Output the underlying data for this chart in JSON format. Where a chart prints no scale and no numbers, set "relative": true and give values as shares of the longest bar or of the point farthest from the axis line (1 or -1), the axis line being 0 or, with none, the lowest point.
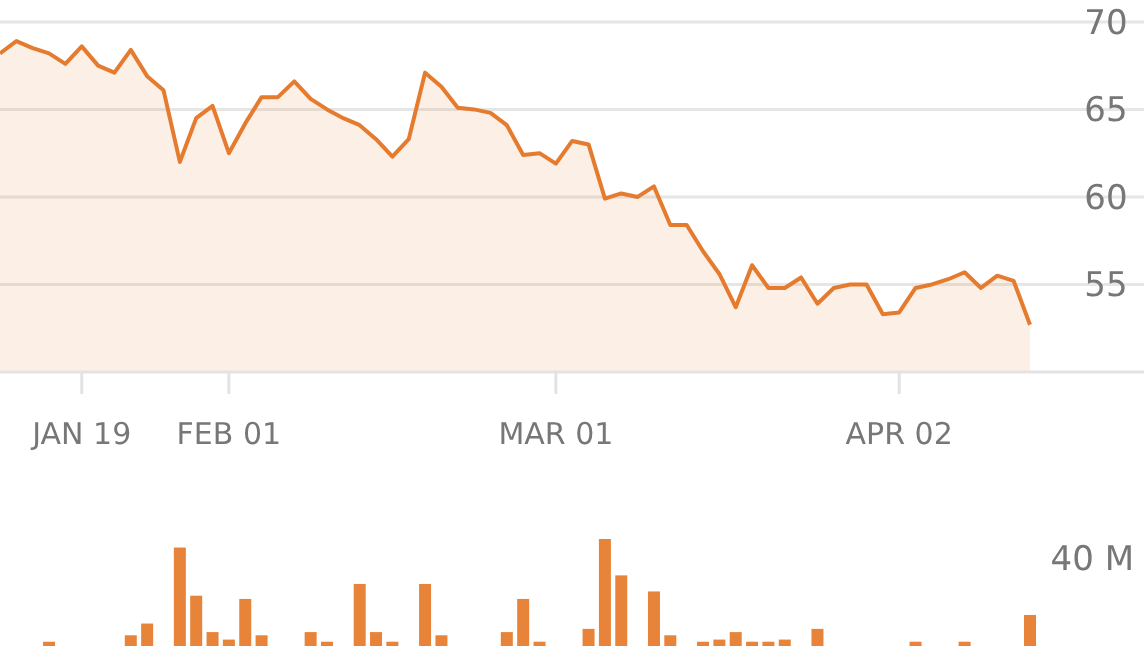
{
  "chart_data": [
    {
      "type": "area",
      "categories": [
        null,
        null,
        null,
        null,
        null,
        "JAN 19",
        null,
        null,
        null,
        null,
        null,
        null,
        null,
        null,
        "FEB 01",
        null,
        null,
        null,
        null,
        null,
        null,
        null,
        null,
        null,
        null,
        null,
        null,
        null,
        null,
        null,
        null,
        null,
        null,
        null,
        "MAR 01",
        null,
        null,
        null,
        null,
        null,
        null,
        null,
        null,
        null,
        null,
        null,
        null,
        null,
        null,
        null,
        null,
        null,
        null,
        null,
        null,
        "APR 02",
        null,
        null,
        null,
        null,
        null,
        null,
        null,
        null
      ],
      "series": [
        {
          "color": "#e57b2e",
          "values": [
            68.2,
            68.9,
            68.5,
            68.2,
            67.6,
            68.6,
            67.5,
            67.1,
            68.4,
            66.9,
            66.1,
            62.0,
            64.5,
            65.2,
            62.5,
            64.2,
            65.7,
            65.7,
            66.6,
            65.6,
            65.0,
            64.5,
            64.1,
            63.3,
            62.3,
            63.3,
            67.1,
            66.3,
            65.1,
            65.0,
            64.8,
            64.1,
            62.4,
            62.5,
            61.9,
            63.2,
            63.0,
            59.9,
            60.2,
            60.0,
            60.6,
            58.4,
            58.4,
            56.9,
            55.6,
            53.7,
            56.1,
            54.8,
            54.8,
            55.4,
            53.9,
            54.8,
            55.0,
            55.0,
            53.3,
            53.4,
            54.8,
            55.0,
            55.3,
            55.7,
            54.8,
            55.5,
            55.2,
            52.7
          ]
        }
      ],
      "ylim": [
        50,
        71.25
      ],
      "yticks": [
        55,
        60,
        65,
        70
      ],
      "grid": "y"
    },
    {
      "type": "bar",
      "relative": true,
      "categories": [
        null,
        null,
        null,
        null,
        null,
        null,
        null,
        null,
        null,
        null,
        null,
        null,
        null,
        null,
        null,
        null,
        null,
        null,
        null,
        null,
        null,
        null,
        null,
        null,
        null,
        null,
        null,
        null,
        null,
        null,
        null,
        null,
        null,
        null,
        null,
        null,
        null,
        null,
        null,
        null,
        null,
        null,
        null,
        null,
        null,
        null,
        null,
        null,
        null,
        null,
        null,
        null,
        null,
        null,
        null,
        null,
        null,
        null,
        null,
        null,
        null,
        null,
        null,
        null
      ],
      "series": [
        {
          "color": "#e8843a",
          "values": [
            0,
            0,
            0,
            0.04,
            0,
            0,
            0,
            0,
            0.1,
            0.21,
            0,
            0.92,
            0.47,
            0.13,
            0.06,
            0.44,
            0.1,
            0,
            0,
            0.13,
            0.04,
            0,
            0.58,
            0.13,
            0.04,
            0,
            0.58,
            0.1,
            0,
            0,
            0,
            0.13,
            0.44,
            0.04,
            0,
            0,
            0.16,
            1,
            0.66,
            0,
            0.51,
            0.1,
            0,
            0.04,
            0.06,
            0.13,
            0.04,
            0.04,
            0.06,
            0,
            0.16,
            0,
            0,
            0,
            0,
            0,
            0.04,
            0,
            0,
            0.04,
            0,
            0,
            0,
            0.29
          ]
        }
      ],
      "annotations": [
        "40 M"
      ]
    }
  ]
}
